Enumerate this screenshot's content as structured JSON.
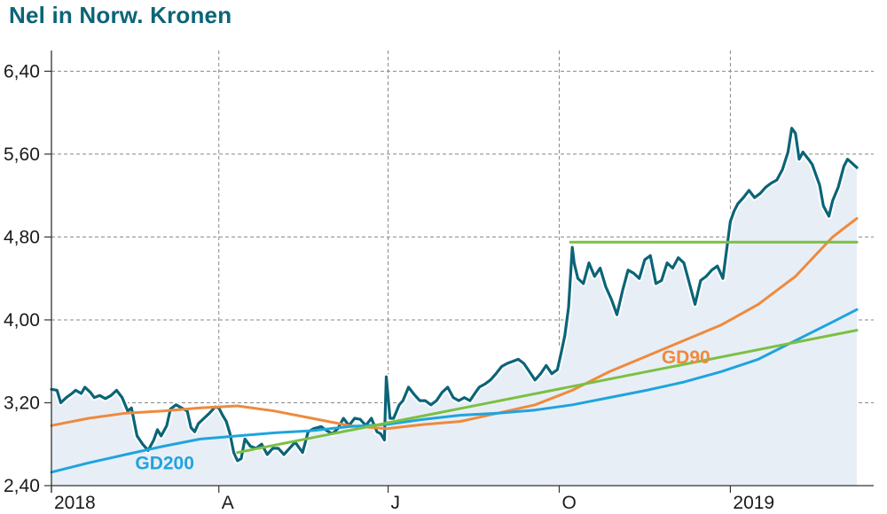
{
  "title": "Nel in Norw. Kronen",
  "chart_data": {
    "type": "line",
    "title": "Nel in Norw. Kronen",
    "xlabel": "",
    "ylabel": "",
    "ylim": [
      2.4,
      6.6
    ],
    "xlim": [
      "2018-01-01",
      "2019-03-10"
    ],
    "y_ticks": [
      "2,40",
      "3,20",
      "4,00",
      "4,80",
      "5,60",
      "6,40"
    ],
    "y_tick_values": [
      2.4,
      3.2,
      4.0,
      4.8,
      5.6,
      6.4
    ],
    "x_ticks": [
      {
        "label": "2018",
        "date": "2018-01-01"
      },
      {
        "label": "A",
        "date": "2018-04-01"
      },
      {
        "label": "J",
        "date": "2018-07-01"
      },
      {
        "label": "O",
        "date": "2018-10-01"
      },
      {
        "label": "2019",
        "date": "2019-01-01"
      }
    ],
    "grid": true,
    "series": [
      {
        "name": "",
        "color": "#0b6478",
        "area_color": "#e8eef6",
        "points": [
          [
            "2018-01-01",
            3.33
          ],
          [
            "2018-01-04",
            3.32
          ],
          [
            "2018-01-06",
            3.2
          ],
          [
            "2018-01-09",
            3.25
          ],
          [
            "2018-01-12",
            3.29
          ],
          [
            "2018-01-14",
            3.32
          ],
          [
            "2018-01-17",
            3.29
          ],
          [
            "2018-01-19",
            3.35
          ],
          [
            "2018-01-22",
            3.3
          ],
          [
            "2018-01-24",
            3.25
          ],
          [
            "2018-01-27",
            3.27
          ],
          [
            "2018-01-30",
            3.24
          ],
          [
            "2018-02-02",
            3.27
          ],
          [
            "2018-02-05",
            3.32
          ],
          [
            "2018-02-08",
            3.25
          ],
          [
            "2018-02-11",
            3.12
          ],
          [
            "2018-02-13",
            3.15
          ],
          [
            "2018-02-16",
            2.88
          ],
          [
            "2018-02-19",
            2.8
          ],
          [
            "2018-02-22",
            2.74
          ],
          [
            "2018-02-25",
            2.84
          ],
          [
            "2018-02-27",
            2.94
          ],
          [
            "2018-03-01",
            2.88
          ],
          [
            "2018-03-04",
            2.98
          ],
          [
            "2018-03-06",
            3.14
          ],
          [
            "2018-03-09",
            3.18
          ],
          [
            "2018-03-12",
            3.15
          ],
          [
            "2018-03-15",
            3.12
          ],
          [
            "2018-03-17",
            2.96
          ],
          [
            "2018-03-19",
            2.92
          ],
          [
            "2018-03-21",
            3.0
          ],
          [
            "2018-03-24",
            3.05
          ],
          [
            "2018-03-27",
            3.1
          ],
          [
            "2018-03-30",
            3.16
          ],
          [
            "2018-04-01",
            3.15
          ],
          [
            "2018-04-03",
            3.08
          ],
          [
            "2018-04-05",
            3.02
          ],
          [
            "2018-04-07",
            2.9
          ],
          [
            "2018-04-09",
            2.72
          ],
          [
            "2018-04-11",
            2.64
          ],
          [
            "2018-04-13",
            2.66
          ],
          [
            "2018-04-15",
            2.85
          ],
          [
            "2018-04-18",
            2.78
          ],
          [
            "2018-04-21",
            2.76
          ],
          [
            "2018-04-24",
            2.8
          ],
          [
            "2018-04-27",
            2.7
          ],
          [
            "2018-04-30",
            2.76
          ],
          [
            "2018-05-03",
            2.76
          ],
          [
            "2018-05-06",
            2.7
          ],
          [
            "2018-05-09",
            2.76
          ],
          [
            "2018-05-12",
            2.82
          ],
          [
            "2018-05-16",
            2.72
          ],
          [
            "2018-05-19",
            2.92
          ],
          [
            "2018-05-22",
            2.95
          ],
          [
            "2018-05-26",
            2.97
          ],
          [
            "2018-05-29",
            2.93
          ],
          [
            "2018-06-01",
            2.9
          ],
          [
            "2018-06-04",
            2.95
          ],
          [
            "2018-06-07",
            3.05
          ],
          [
            "2018-06-10",
            2.98
          ],
          [
            "2018-06-13",
            3.05
          ],
          [
            "2018-06-16",
            3.04
          ],
          [
            "2018-06-19",
            2.98
          ],
          [
            "2018-06-22",
            3.05
          ],
          [
            "2018-06-25",
            2.92
          ],
          [
            "2018-06-27",
            2.9
          ],
          [
            "2018-06-29",
            2.84
          ],
          [
            "2018-06-30",
            3.45
          ],
          [
            "2018-07-02",
            3.05
          ],
          [
            "2018-07-04",
            3.05
          ],
          [
            "2018-07-07",
            3.18
          ],
          [
            "2018-07-09",
            3.22
          ],
          [
            "2018-07-12",
            3.35
          ],
          [
            "2018-07-15",
            3.28
          ],
          [
            "2018-07-18",
            3.22
          ],
          [
            "2018-07-21",
            3.22
          ],
          [
            "2018-07-24",
            3.18
          ],
          [
            "2018-07-27",
            3.22
          ],
          [
            "2018-07-30",
            3.3
          ],
          [
            "2018-08-02",
            3.35
          ],
          [
            "2018-08-05",
            3.25
          ],
          [
            "2018-08-08",
            3.22
          ],
          [
            "2018-08-11",
            3.25
          ],
          [
            "2018-08-14",
            3.22
          ],
          [
            "2018-08-17",
            3.3
          ],
          [
            "2018-08-19",
            3.35
          ],
          [
            "2018-08-22",
            3.38
          ],
          [
            "2018-08-25",
            3.42
          ],
          [
            "2018-08-28",
            3.48
          ],
          [
            "2018-08-31",
            3.55
          ],
          [
            "2018-09-03",
            3.58
          ],
          [
            "2018-09-06",
            3.6
          ],
          [
            "2018-09-09",
            3.62
          ],
          [
            "2018-09-12",
            3.58
          ],
          [
            "2018-09-15",
            3.5
          ],
          [
            "2018-09-18",
            3.42
          ],
          [
            "2018-09-21",
            3.48
          ],
          [
            "2018-09-24",
            3.56
          ],
          [
            "2018-09-27",
            3.48
          ],
          [
            "2018-09-30",
            3.52
          ],
          [
            "2018-10-02",
            3.68
          ],
          [
            "2018-10-04",
            3.85
          ],
          [
            "2018-10-06",
            4.12
          ],
          [
            "2018-10-08",
            4.7
          ],
          [
            "2018-10-09",
            4.55
          ],
          [
            "2018-10-11",
            4.4
          ],
          [
            "2018-10-14",
            4.35
          ],
          [
            "2018-10-17",
            4.55
          ],
          [
            "2018-10-20",
            4.42
          ],
          [
            "2018-10-23",
            4.5
          ],
          [
            "2018-10-26",
            4.32
          ],
          [
            "2018-10-29",
            4.2
          ],
          [
            "2018-11-01",
            4.05
          ],
          [
            "2018-11-04",
            4.28
          ],
          [
            "2018-11-07",
            4.48
          ],
          [
            "2018-11-10",
            4.45
          ],
          [
            "2018-11-13",
            4.4
          ],
          [
            "2018-11-16",
            4.58
          ],
          [
            "2018-11-19",
            4.62
          ],
          [
            "2018-11-22",
            4.35
          ],
          [
            "2018-11-25",
            4.38
          ],
          [
            "2018-11-28",
            4.55
          ],
          [
            "2018-12-01",
            4.5
          ],
          [
            "2018-12-04",
            4.6
          ],
          [
            "2018-12-07",
            4.55
          ],
          [
            "2018-12-10",
            4.35
          ],
          [
            "2018-12-13",
            4.15
          ],
          [
            "2018-12-16",
            4.38
          ],
          [
            "2018-12-19",
            4.42
          ],
          [
            "2018-12-22",
            4.48
          ],
          [
            "2018-12-25",
            4.52
          ],
          [
            "2018-12-28",
            4.4
          ],
          [
            "2019-01-01",
            4.95
          ],
          [
            "2019-01-03",
            5.05
          ],
          [
            "2019-01-05",
            5.12
          ],
          [
            "2019-01-08",
            5.18
          ],
          [
            "2019-01-11",
            5.25
          ],
          [
            "2019-01-14",
            5.18
          ],
          [
            "2019-01-17",
            5.22
          ],
          [
            "2019-01-20",
            5.28
          ],
          [
            "2019-01-23",
            5.32
          ],
          [
            "2019-01-26",
            5.35
          ],
          [
            "2019-01-29",
            5.45
          ],
          [
            "2019-02-01",
            5.62
          ],
          [
            "2019-02-03",
            5.85
          ],
          [
            "2019-02-05",
            5.8
          ],
          [
            "2019-02-07",
            5.55
          ],
          [
            "2019-02-09",
            5.62
          ],
          [
            "2019-02-12",
            5.55
          ],
          [
            "2019-02-14",
            5.5
          ],
          [
            "2019-02-16",
            5.4
          ],
          [
            "2019-02-18",
            5.3
          ],
          [
            "2019-02-20",
            5.1
          ],
          [
            "2019-02-23",
            5.0
          ],
          [
            "2019-02-25",
            5.15
          ],
          [
            "2019-02-28",
            5.28
          ],
          [
            "2019-03-03",
            5.48
          ],
          [
            "2019-03-05",
            5.55
          ],
          [
            "2019-03-07",
            5.52
          ],
          [
            "2019-03-10",
            5.47
          ]
        ]
      },
      {
        "name": "GD90",
        "color": "#ee8a3d",
        "points": [
          [
            "2018-01-01",
            2.98
          ],
          [
            "2018-01-21",
            3.05
          ],
          [
            "2018-02-10",
            3.1
          ],
          [
            "2018-03-02",
            3.12
          ],
          [
            "2018-03-22",
            3.15
          ],
          [
            "2018-04-11",
            3.17
          ],
          [
            "2018-05-01",
            3.12
          ],
          [
            "2018-05-21",
            3.05
          ],
          [
            "2018-06-10",
            2.98
          ],
          [
            "2018-06-30",
            2.95
          ],
          [
            "2018-07-20",
            2.99
          ],
          [
            "2018-08-09",
            3.02
          ],
          [
            "2018-08-29",
            3.1
          ],
          [
            "2018-09-18",
            3.18
          ],
          [
            "2018-10-08",
            3.32
          ],
          [
            "2018-10-28",
            3.5
          ],
          [
            "2018-11-17",
            3.65
          ],
          [
            "2018-12-07",
            3.8
          ],
          [
            "2018-12-27",
            3.95
          ],
          [
            "2019-01-16",
            4.15
          ],
          [
            "2019-02-05",
            4.42
          ],
          [
            "2019-02-25",
            4.8
          ],
          [
            "2019-03-10",
            4.98
          ]
        ]
      },
      {
        "name": "GD200",
        "color": "#1ea4de",
        "points": [
          [
            "2018-01-01",
            2.53
          ],
          [
            "2018-01-21",
            2.62
          ],
          [
            "2018-02-10",
            2.7
          ],
          [
            "2018-03-02",
            2.78
          ],
          [
            "2018-03-22",
            2.85
          ],
          [
            "2018-04-11",
            2.88
          ],
          [
            "2018-05-01",
            2.91
          ],
          [
            "2018-05-21",
            2.93
          ],
          [
            "2018-06-10",
            2.97
          ],
          [
            "2018-06-30",
            2.99
          ],
          [
            "2018-07-20",
            3.04
          ],
          [
            "2018-08-09",
            3.08
          ],
          [
            "2018-08-29",
            3.1
          ],
          [
            "2018-09-18",
            3.13
          ],
          [
            "2018-10-08",
            3.18
          ],
          [
            "2018-10-28",
            3.25
          ],
          [
            "2018-11-17",
            3.32
          ],
          [
            "2018-12-07",
            3.4
          ],
          [
            "2018-12-27",
            3.5
          ],
          [
            "2019-01-16",
            3.62
          ],
          [
            "2019-02-05",
            3.8
          ],
          [
            "2019-02-25",
            3.98
          ],
          [
            "2019-03-10",
            4.1
          ]
        ]
      },
      {
        "name": "",
        "color": "#7bc043",
        "points": [
          [
            "2018-04-11",
            2.72
          ],
          [
            "2019-03-10",
            3.9
          ]
        ]
      },
      {
        "name": "",
        "color": "#7bc043",
        "points": [
          [
            "2018-10-07",
            4.75
          ],
          [
            "2019-03-10",
            4.75
          ]
        ]
      }
    ],
    "annotations": [
      {
        "text": "GD90",
        "color": "#ee8a3d",
        "x": "2018-11-25",
        "y": 3.58
      },
      {
        "text": "GD200",
        "color": "#1ea4de",
        "x": "2018-02-15",
        "y": 2.56
      }
    ]
  }
}
